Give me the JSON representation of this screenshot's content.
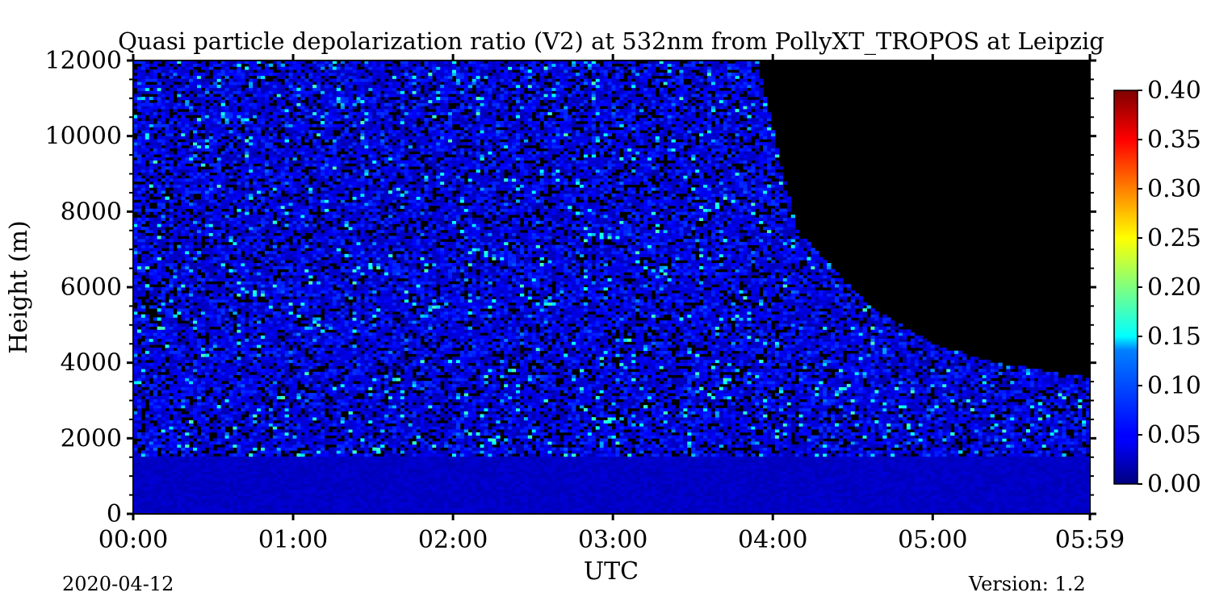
{
  "chart_data": {
    "type": "heatmap",
    "title": "Quasi particle depolarization ratio (V2) at 532nm from PollyXT_TROPOS at Leipzig",
    "xlabel": "UTC",
    "ylabel": "Height (m)",
    "x_ticks": [
      "00:00",
      "01:00",
      "02:00",
      "03:00",
      "04:00",
      "05:00",
      "05:59"
    ],
    "x_tick_hours": [
      0,
      1,
      2,
      3,
      4,
      5,
      5.983
    ],
    "xlim_hours": [
      0,
      5.983
    ],
    "y_ticks": [
      0,
      2000,
      4000,
      6000,
      8000,
      10000,
      12000
    ],
    "ylim": [
      0,
      12000
    ],
    "colorbar": {
      "ticks": [
        "0.00",
        "0.05",
        "0.10",
        "0.15",
        "0.20",
        "0.25",
        "0.30",
        "0.35",
        "0.40"
      ],
      "range": [
        0,
        0.4
      ],
      "colormap": "jet"
    },
    "signal_top_height": [
      {
        "hour": 0,
        "height": 12000
      },
      {
        "hour": 3.9,
        "height": 12000
      },
      {
        "hour": 4.15,
        "height": 7500
      },
      {
        "hour": 4.6,
        "height": 5500
      },
      {
        "hour": 5.0,
        "height": 4500
      },
      {
        "hour": 5.4,
        "height": 4000
      },
      {
        "hour": 5.983,
        "height": 3600
      }
    ],
    "dense_layer_top_height": 1500,
    "typical_ratio_low": 0.02,
    "typical_ratio_aloft": 0.05
  },
  "footer": {
    "date": "2020-04-12",
    "version": "Version: 1.2"
  }
}
